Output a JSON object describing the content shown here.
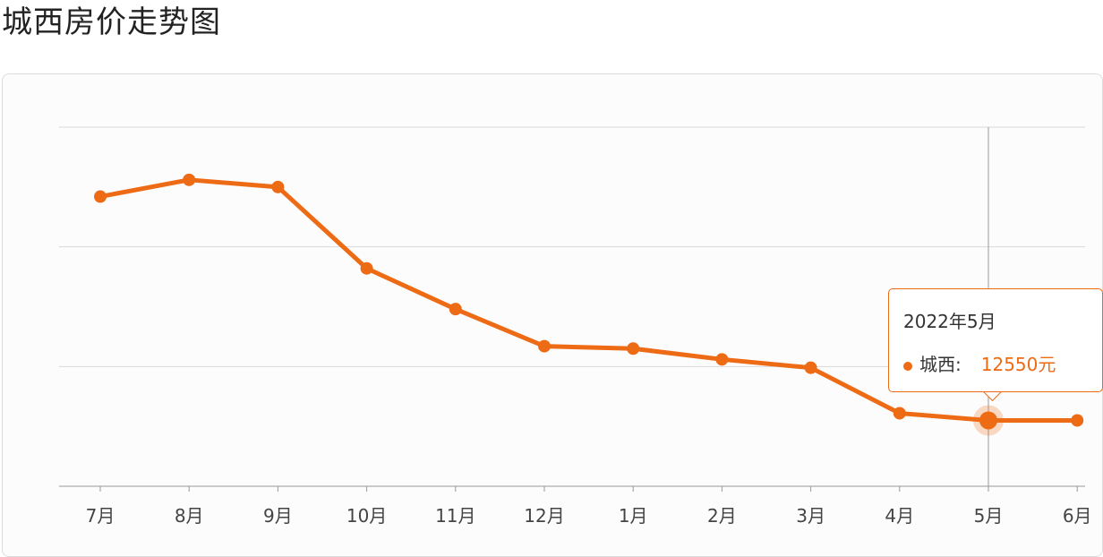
{
  "page": {
    "title": "城西房价走势图"
  },
  "colors": {
    "series": "#ee6b16",
    "grid": "#d9d9d9",
    "axis": "#999999",
    "crosshair": "#9a9a9a"
  },
  "tooltip": {
    "date": "2022年5月",
    "series_label": "城西:",
    "value": "12550元"
  },
  "chart_data": {
    "type": "line",
    "title": "城西房价走势图",
    "categories": [
      "7月",
      "8月",
      "9月",
      "10月",
      "11月",
      "12月",
      "1月",
      "2月",
      "3月",
      "4月",
      "5月",
      "6月"
    ],
    "series": [
      {
        "name": "城西",
        "values": [
          14420,
          14560,
          14500,
          13820,
          13480,
          13170,
          13150,
          13060,
          12990,
          12610,
          12550,
          12550
        ]
      }
    ],
    "ylim": [
      12000,
      15000
    ],
    "grid": true,
    "highlighted_index": 10
  }
}
